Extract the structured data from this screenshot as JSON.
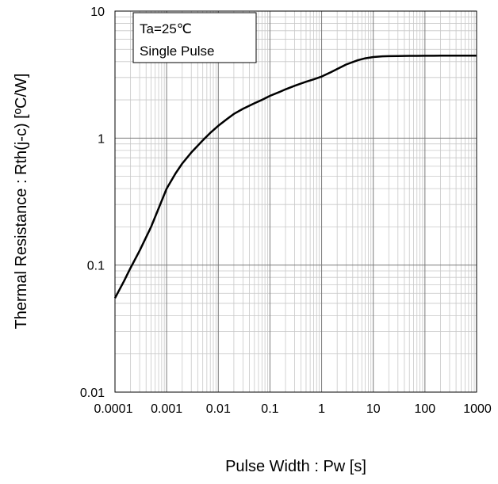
{
  "chart_data": {
    "type": "line",
    "xscale": "log",
    "yscale": "log",
    "xlim": [
      0.0001,
      1000
    ],
    "ylim": [
      0.01,
      10
    ],
    "grid": true,
    "xlabel": "Pulse Width : Pw [s]",
    "ylabel": "Thermal  Resistance : Rth(j-c)  [ºC/W]",
    "xticks": [
      0.0001,
      0.001,
      0.01,
      0.1,
      1,
      10,
      100,
      1000
    ],
    "xtick_labels": [
      "0.0001",
      "0.001",
      "0.01",
      "0.1",
      "1",
      "10",
      "100",
      "1000"
    ],
    "yticks": [
      0.01,
      0.1,
      1,
      10
    ],
    "ytick_labels": [
      "0.01",
      "0.1",
      "1",
      "10"
    ],
    "legend": {
      "placement": "top-left",
      "lines": [
        "Ta=25℃",
        "Single Pulse"
      ]
    },
    "series": [
      {
        "color": "#000000",
        "x": [
          0.0001,
          0.00015,
          0.0002,
          0.0003,
          0.0005,
          0.0007,
          0.001,
          0.0015,
          0.002,
          0.003,
          0.005,
          0.007,
          0.01,
          0.015,
          0.02,
          0.03,
          0.05,
          0.07,
          0.1,
          0.15,
          0.2,
          0.3,
          0.5,
          0.7,
          1,
          1.5,
          2,
          3,
          5,
          7,
          10,
          15,
          20,
          30,
          50,
          70,
          100,
          150,
          200,
          300,
          500,
          700,
          1000
        ],
        "y": [
          0.055,
          0.075,
          0.095,
          0.13,
          0.2,
          0.28,
          0.4,
          0.53,
          0.63,
          0.77,
          0.96,
          1.1,
          1.25,
          1.42,
          1.55,
          1.7,
          1.88,
          2.0,
          2.15,
          2.3,
          2.42,
          2.58,
          2.78,
          2.9,
          3.05,
          3.3,
          3.5,
          3.8,
          4.1,
          4.25,
          4.35,
          4.4,
          4.42,
          4.43,
          4.44,
          4.44,
          4.45,
          4.45,
          4.46,
          4.46,
          4.46,
          4.46,
          4.46
        ]
      }
    ]
  }
}
